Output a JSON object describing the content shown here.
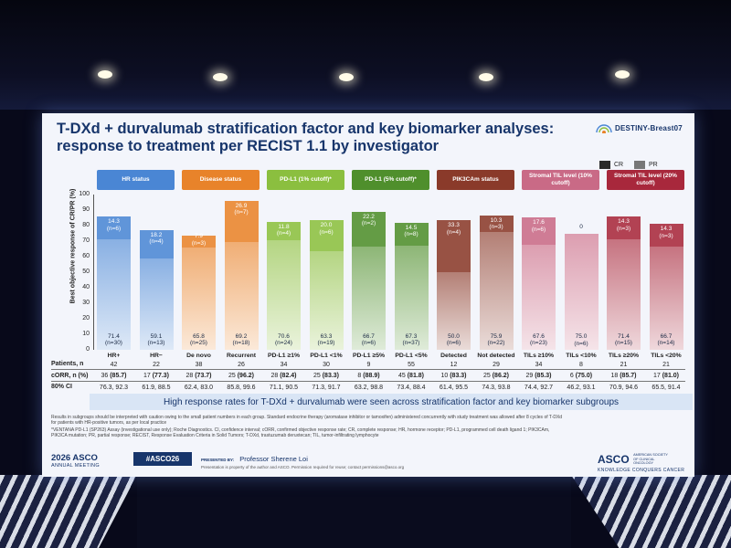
{
  "slide": {
    "title_line1": "T-DXd + durvalumab stratification factor and key biomarker analyses:",
    "title_line2": "response to treatment per RECIST 1.1 by investigator",
    "brand": "DESTINY-Breast07",
    "banner": "High response rates for T-DXd + durvalumab were seen across stratification factor and key biomarker subgroups",
    "footnote_1": "Results in subgroups should be interpreted with caution owing to the small patient numbers in each group. Standard endocrine therapy (aromatase inhibitor or tamoxifen) administered concurrently with study treatment was allowed after 8 cycles of T-DXd",
    "footnote_2": "for patients with HR-positive tumors, as per local practice",
    "footnote_3": "*VENTANA PD-L1 (SP263) Assay (investigational use only); Roche Diagnostics. CI, confidence interval; cORR, confirmed objective response rate; CR, complete response; HR, hormone receptor; PD-L1, programmed cell death ligand 1; PIK3CAm,",
    "footnote_4": "PIK3CA mutation; PR, partial response; RECIST, Response Evaluation Criteria in Solid Tumors; T-DXd, trastuzumab deruxtecan; TIL, tumor-infiltrating lymphocyte",
    "meeting_year": "2026 ASCO",
    "meeting_sub": "ANNUAL MEETING",
    "hashtag": "#ASCO26",
    "presented_by": "PRESENTED BY:",
    "presenter": "Professor Sherene Loi",
    "presenter_note": "Presentation is property of the author and ASCO. Permission required for reuse; contact permissions@asco.org",
    "asco_word": "ASCO",
    "asco_side": "AMERICAN SOCIETY OF CLINICAL ONCOLOGY",
    "asco_tag": "KNOWLEDGE CONQUERS CANCER"
  },
  "colors": {
    "hr": "#4a86d4",
    "disease": "#e8832a",
    "pdl1_1": "#8bbf3f",
    "pdl1_5": "#4f8f2c",
    "pik3ca": "#8a3a2a",
    "til10": "#c96a86",
    "til20": "#a8283c",
    "cr": "#2a2a2a",
    "pr": "#777777"
  },
  "table": {
    "row_patients": "Patients, n",
    "row_corr": "cORR, n (%)",
    "row_ci": "80% CI",
    "patients": [
      "42",
      "22",
      "38",
      "26",
      "34",
      "30",
      "9",
      "55",
      "12",
      "29",
      "34",
      "8",
      "21",
      "21"
    ],
    "corr_n": [
      "36",
      "17",
      "28",
      "25",
      "28",
      "25",
      "8",
      "45",
      "10",
      "25",
      "29",
      "6",
      "18",
      "17"
    ],
    "corr_pct": [
      "(85.7)",
      "(77.3)",
      "(73.7)",
      "(96.2)",
      "(82.4)",
      "(83.3)",
      "(88.9)",
      "(81.8)",
      "(83.3)",
      "(86.2)",
      "(85.3)",
      "(75.0)",
      "(85.7)",
      "(81.0)"
    ],
    "ci": [
      "76.3, 92.3",
      "61.9, 88.5",
      "62.4, 83.0",
      "85.8, 99.6",
      "71.1, 90.5",
      "71.3, 91.7",
      "63.2, 98.8",
      "73.4, 88.4",
      "61.4, 95.5",
      "74.3, 93.8",
      "74.4, 92.7",
      "46.2, 93.1",
      "70.9, 94.6",
      "65.5, 91.4"
    ]
  },
  "chart_data": {
    "type": "bar",
    "stacked": true,
    "ylabel": "Best objective response of CR/PR (%)",
    "ylim": [
      0,
      100
    ],
    "yticks": [
      "0",
      "10",
      "20",
      "30",
      "40",
      "50",
      "60",
      "70",
      "80",
      "90",
      "100"
    ],
    "legend": [
      "CR",
      "PR"
    ],
    "legend_placement": "top-right",
    "groups": [
      {
        "name": "HR status",
        "color_key": "hr",
        "start": 0,
        "count": 2
      },
      {
        "name": "Disease status",
        "color_key": "disease",
        "start": 2,
        "count": 2
      },
      {
        "name": "PD-L1 (1% cutoff)*",
        "color_key": "pdl1_1",
        "start": 4,
        "count": 2
      },
      {
        "name": "PD-L1 (5% cutoff)*",
        "color_key": "pdl1_5",
        "start": 6,
        "count": 2
      },
      {
        "name": "PIK3CAm status",
        "color_key": "pik3ca",
        "start": 8,
        "count": 2
      },
      {
        "name": "Stromal TIL level (10% cutoff)",
        "color_key": "til10",
        "start": 10,
        "count": 2
      },
      {
        "name": "Stromal TIL level (20% cutoff)",
        "color_key": "til20",
        "start": 12,
        "count": 2
      }
    ],
    "categories": [
      "HR+",
      "HR−",
      "De novo",
      "Recurrent",
      "PD-L1 ≥1%",
      "PD-L1 <1%",
      "PD-L1 ≥5%",
      "PD-L1 <5%",
      "Detected",
      "Not detected",
      "TILs ≥10%",
      "TILs <10%",
      "TILs ≥20%",
      "TILs <20%"
    ],
    "series": [
      {
        "name": "PR",
        "values": [
          71.4,
          59.1,
          65.8,
          69.2,
          70.6,
          63.3,
          66.7,
          67.3,
          50.0,
          75.9,
          67.6,
          75.0,
          71.4,
          66.7
        ],
        "labels": [
          "71.4",
          "59.1",
          "65.8",
          "69.2",
          "70.6",
          "63.3",
          "66.7",
          "67.3",
          "50.0",
          "75.9",
          "67.6",
          "75.0",
          "71.4",
          "66.7"
        ],
        "n_labels": [
          "(n=30)",
          "(n=13)",
          "(n=25)",
          "(n=18)",
          "(n=24)",
          "(n=19)",
          "(n=6)",
          "(n=37)",
          "(n=6)",
          "(n=22)",
          "(n=23)",
          "(n=6)",
          "(n=15)",
          "(n=14)"
        ]
      },
      {
        "name": "CR",
        "values": [
          14.3,
          18.2,
          7.9,
          26.9,
          11.8,
          20.0,
          22.2,
          14.5,
          33.3,
          10.3,
          17.6,
          0,
          14.3,
          14.3
        ],
        "labels": [
          "14.3",
          "18.2",
          "7.9",
          "26.9",
          "11.8",
          "20.0",
          "22.2",
          "14.5",
          "33.3",
          "10.3",
          "17.6",
          "0",
          "14.3",
          "14.3"
        ],
        "n_labels": [
          "(n=6)",
          "(n=4)",
          "(n=3)",
          "(n=7)",
          "(n=4)",
          "(n=6)",
          "(n=2)",
          "(n=8)",
          "(n=4)",
          "(n=3)",
          "(n=6)",
          "",
          "(n=3)",
          "(n=3)"
        ]
      }
    ]
  }
}
